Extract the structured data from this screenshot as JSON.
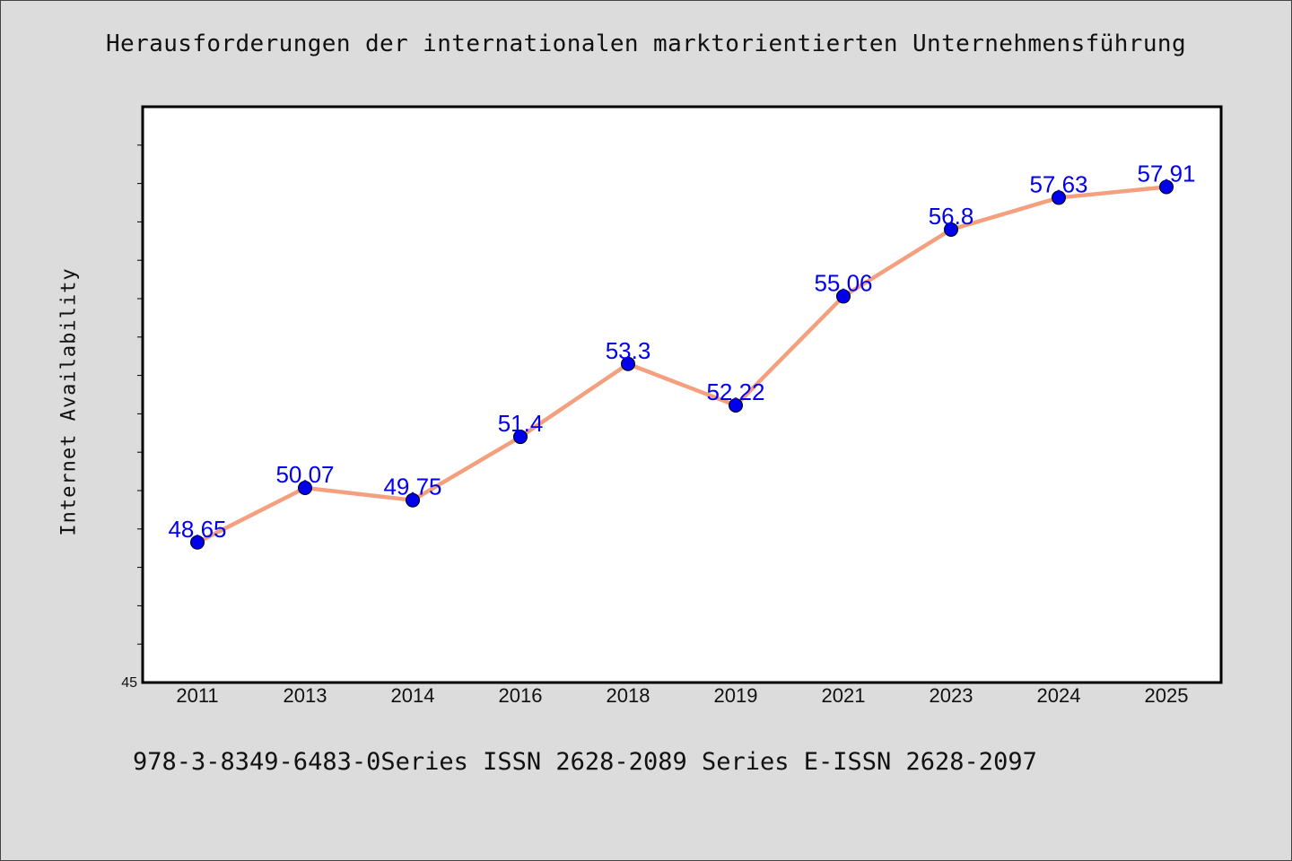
{
  "title": "Herausforderungen der internationalen marktorientierten Unternehmensführung",
  "footer": "978-3-8349-6483-0Series ISSN 2628-2089 Series E-ISSN 2628-2097",
  "chart_data": {
    "type": "line",
    "title": "Herausforderungen der internationalen marktorientierten Unternehmensführung",
    "xlabel": "",
    "ylabel": "Internet Availability",
    "categories": [
      "2011",
      "2013",
      "2014",
      "2016",
      "2018",
      "2019",
      "2021",
      "2023",
      "2024",
      "2025"
    ],
    "series": [
      {
        "values": [
          48.65,
          50.07,
          49.75,
          51.4,
          53.3,
          52.22,
          55.06,
          56.8,
          57.63,
          57.91
        ]
      }
    ],
    "data_labels": [
      "48.65",
      "50.07",
      "49.75",
      "51.4",
      "53.3",
      "52.22",
      "55.06",
      "56.8",
      "57.63",
      "57.91"
    ],
    "ylim": [
      45,
      60
    ],
    "y_tick_labels": [
      "45"
    ],
    "grid": false,
    "legend": "none",
    "colors": {
      "line": "#f4a07f",
      "marker": "#0000ee",
      "data_label": "#0000ee",
      "background": "#dcdcdc",
      "plot_background": "#ffffff"
    }
  }
}
